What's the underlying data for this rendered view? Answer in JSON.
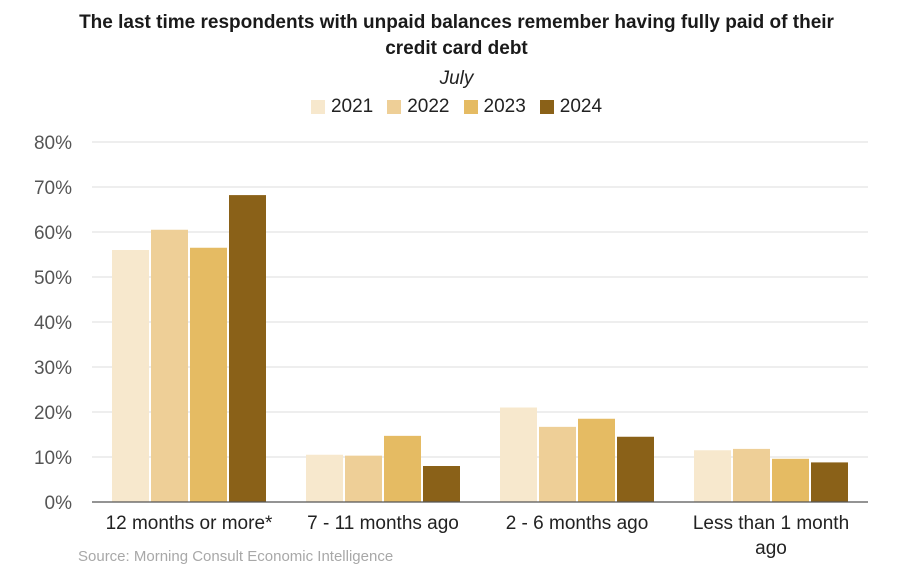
{
  "chart_data": {
    "type": "bar",
    "title": "The last time respondents with unpaid balances remember having fully paid of their credit card debt",
    "title_lines": [
      "The last time respondents with unpaid balances remember having fully paid of their",
      "credit card debt"
    ],
    "subtitle": "July",
    "source": "Source: Morning Consult Economic Intelligence",
    "categories": [
      "12 months or more*",
      "7 - 11 months ago",
      "2 - 6 months ago",
      "Less than 1 month ago"
    ],
    "category_lines": [
      [
        "12 months or more*"
      ],
      [
        "7 - 11 months ago"
      ],
      [
        "2 - 6 months ago"
      ],
      [
        "Less than 1 month",
        "ago"
      ]
    ],
    "series": [
      {
        "name": "2021",
        "color": "#f7e8cd",
        "values": [
          56,
          10.5,
          21,
          11.5
        ]
      },
      {
        "name": "2022",
        "color": "#eecf97",
        "values": [
          60.5,
          10.3,
          16.7,
          11.8
        ]
      },
      {
        "name": "2023",
        "color": "#e5bb63",
        "values": [
          56.5,
          14.7,
          18.5,
          9.6
        ]
      },
      {
        "name": "2024",
        "color": "#8a6118",
        "values": [
          68.2,
          8,
          14.5,
          8.8
        ]
      }
    ],
    "yticks": [
      "0%",
      "10%",
      "20%",
      "30%",
      "40%",
      "50%",
      "60%",
      "70%",
      "80%"
    ],
    "ylim": [
      0,
      80
    ],
    "legend_position": "top-center",
    "grid": true
  }
}
